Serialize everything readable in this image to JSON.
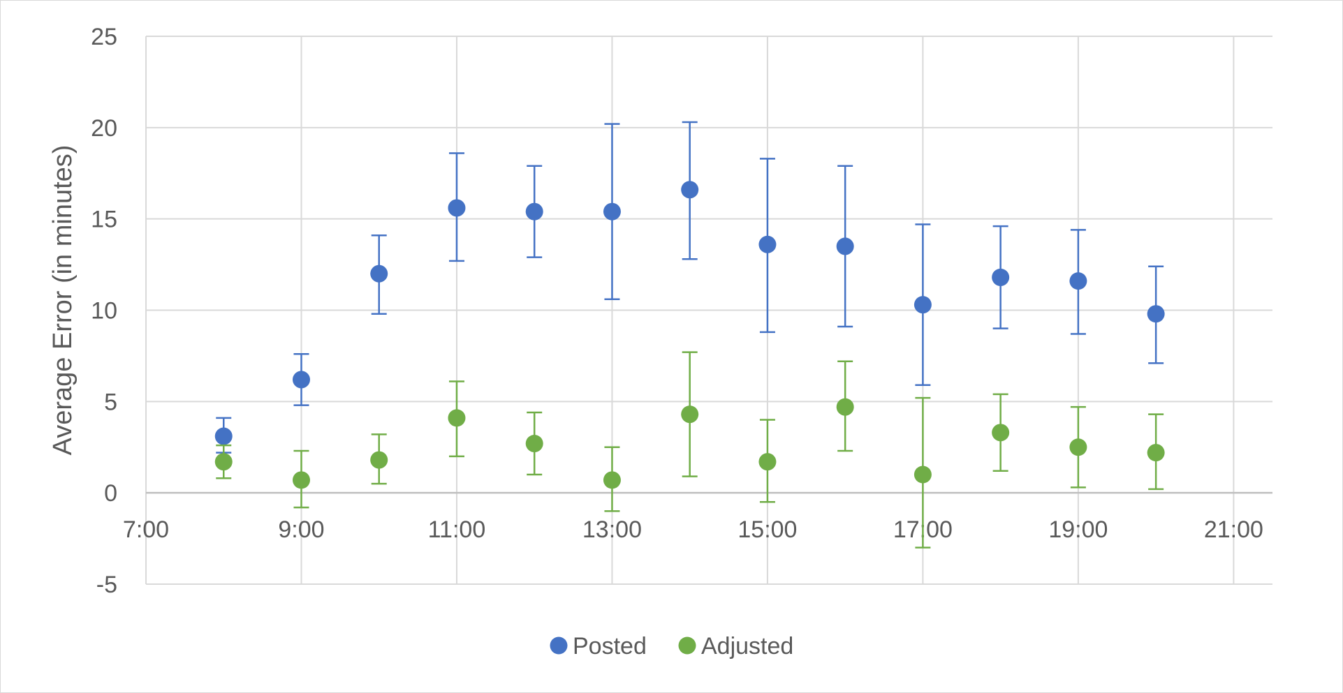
{
  "chart_data": {
    "type": "scatter",
    "title": "",
    "xlabel": "",
    "ylabel": "Average Error (in minutes)",
    "xlim": [
      "7:00",
      "21:30"
    ],
    "ylim": [
      -5,
      25
    ],
    "x_tick_labels": [
      "7:00",
      "9:00",
      "11:00",
      "13:00",
      "15:00",
      "17:00",
      "19:00",
      "21:00"
    ],
    "y_tick_labels": [
      "-5",
      "0",
      "5",
      "10",
      "15",
      "20",
      "25"
    ],
    "grid": true,
    "error_bars": true,
    "legend_position": "bottom",
    "series": [
      {
        "name": "Posted",
        "color": "#4472C4",
        "x": [
          "8:00",
          "9:00",
          "10:00",
          "11:00",
          "12:00",
          "13:00",
          "14:00",
          "15:00",
          "16:00",
          "17:00",
          "18:00",
          "19:00",
          "20:00"
        ],
        "y": [
          3.1,
          6.2,
          12.0,
          15.6,
          15.4,
          15.4,
          16.6,
          13.6,
          13.5,
          10.3,
          11.8,
          11.6,
          9.8
        ],
        "err_low": [
          2.2,
          4.8,
          9.8,
          12.7,
          12.9,
          10.6,
          12.8,
          8.8,
          9.1,
          5.9,
          9.0,
          8.7,
          7.1
        ],
        "err_high": [
          4.1,
          7.6,
          14.1,
          18.6,
          17.9,
          20.2,
          20.3,
          18.3,
          17.9,
          14.7,
          14.6,
          14.4,
          12.4
        ]
      },
      {
        "name": "Adjusted",
        "color": "#70AD47",
        "x": [
          "8:00",
          "9:00",
          "10:00",
          "11:00",
          "12:00",
          "13:00",
          "14:00",
          "15:00",
          "16:00",
          "17:00",
          "18:00",
          "19:00",
          "20:00"
        ],
        "y": [
          1.7,
          0.7,
          1.8,
          4.1,
          2.7,
          0.7,
          4.3,
          1.7,
          4.7,
          1.0,
          3.3,
          2.5,
          2.2
        ],
        "err_low": [
          0.8,
          -0.8,
          0.5,
          2.0,
          1.0,
          -1.0,
          0.9,
          -0.5,
          2.3,
          -3.0,
          1.2,
          0.3,
          0.2
        ],
        "err_high": [
          2.6,
          2.3,
          3.2,
          6.1,
          4.4,
          2.5,
          7.7,
          4.0,
          7.2,
          5.2,
          5.4,
          4.7,
          4.3
        ]
      }
    ]
  }
}
